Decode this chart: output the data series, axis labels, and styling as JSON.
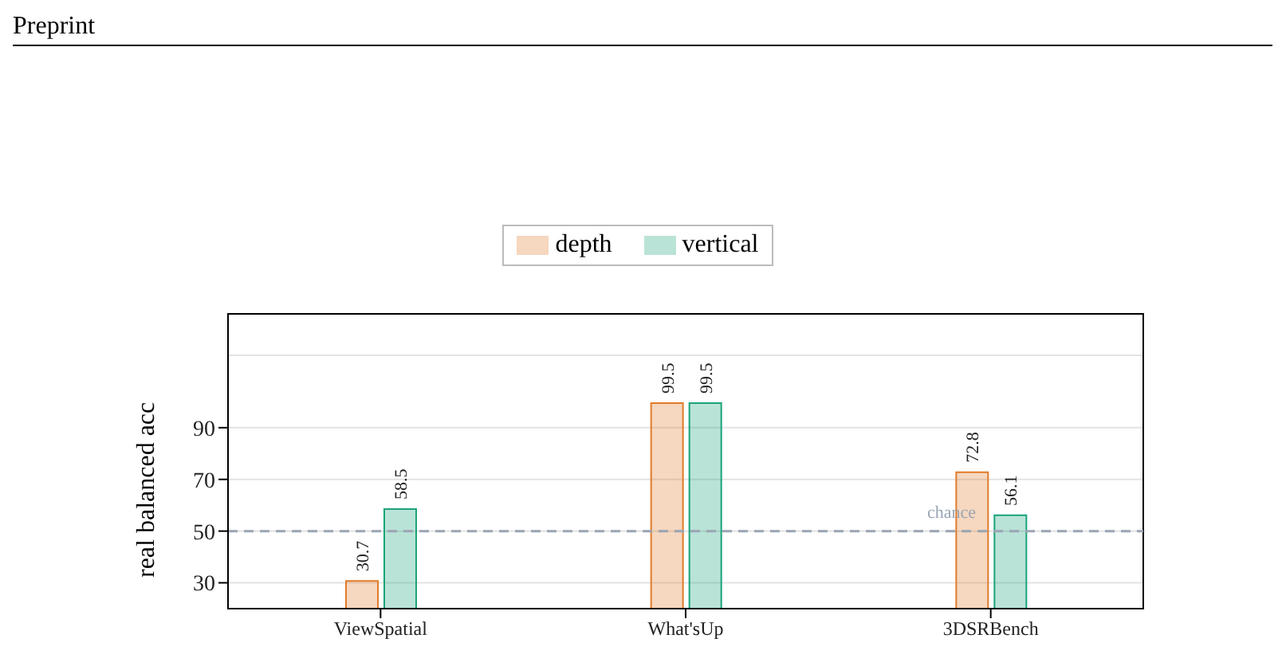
{
  "chart_data": {
    "type": "bar",
    "ylabel": "real balanced acc",
    "categories": [
      "ViewSpatial",
      "What'sUp",
      "3DSRBench"
    ],
    "series": [
      {
        "name": "depth",
        "color": "#e07b2a",
        "values": [
          30.7,
          99.5,
          72.8
        ]
      },
      {
        "name": "vertical",
        "color": "#1aa37a",
        "values": [
          58.5,
          99.5,
          56.1
        ]
      }
    ],
    "ylim": [
      20,
      118
    ],
    "yticks": [
      30,
      50,
      70,
      90
    ],
    "grid": "y",
    "legend": "top",
    "data_labels": true,
    "ref_lines": [
      {
        "axis": "y",
        "value": 50,
        "label": "chance",
        "color": "#9aa5b4",
        "line_style": "dashed"
      }
    ],
    "annotations": [
      "Preprint"
    ]
  }
}
